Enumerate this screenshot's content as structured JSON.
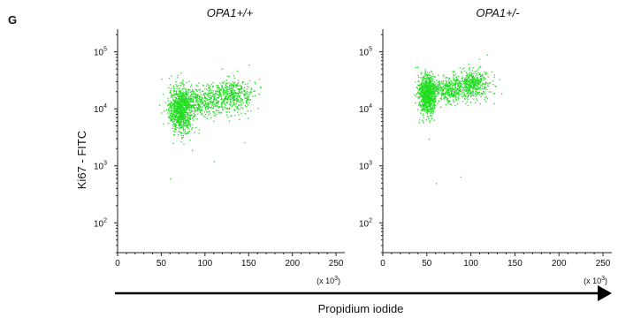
{
  "figure": {
    "panel_letter": "G",
    "y_axis_label": "Ki67 - FITC",
    "x_axis_label": "Propidium iodide",
    "x_multiplier": "(x 10",
    "x_multiplier_exp": "3",
    "x_multiplier_close": ")"
  },
  "colors": {
    "points": "#22dd22",
    "axis": "#222222",
    "arrow": "#000000"
  },
  "chart_data": [
    {
      "type": "scatter",
      "title": "OPA1+/+",
      "xlabel": "Propidium iodide",
      "ylabel": "Ki67 - FITC",
      "x_scale": "linear",
      "y_scale": "log",
      "xlim": [
        0,
        260
      ],
      "ylim": [
        30,
        250000
      ],
      "x_ticks": [
        "0",
        "50",
        "100",
        "150",
        "200",
        "250"
      ],
      "x_tick_values": [
        0,
        50,
        100,
        150,
        200,
        250
      ],
      "y_tick_values": [
        100,
        1000,
        10000,
        100000
      ],
      "y_tick_base": "10",
      "y_tick_exps": [
        "2",
        "3",
        "4",
        "5"
      ],
      "point_color": "#22dd22",
      "clusters": [
        {
          "n": 950,
          "x_mean": 72,
          "x_sd": 7,
          "log10y_mean": 4.0,
          "log10y_sd": 0.2
        },
        {
          "n": 380,
          "x_mean": 98,
          "x_sd": 14,
          "log10y_mean": 4.15,
          "log10y_sd": 0.13
        },
        {
          "n": 420,
          "x_mean": 132,
          "x_sd": 12,
          "log10y_mean": 4.25,
          "log10y_sd": 0.14
        }
      ],
      "outliers": [
        {
          "x": 60,
          "y": 600
        },
        {
          "x": 110,
          "y": 1200
        },
        {
          "x": 145,
          "y": 2600
        },
        {
          "x": 150,
          "y": 60000
        },
        {
          "x": 85,
          "y": 1900
        }
      ]
    },
    {
      "type": "scatter",
      "title": "OPA1+/-",
      "xlabel": "Propidium iodide",
      "ylabel": "Ki67 - FITC",
      "x_scale": "linear",
      "y_scale": "log",
      "xlim": [
        0,
        260
      ],
      "ylim": [
        30,
        250000
      ],
      "x_ticks": [
        "0",
        "50",
        "100",
        "150",
        "200",
        "250"
      ],
      "x_tick_values": [
        0,
        50,
        100,
        150,
        200,
        250
      ],
      "y_tick_values": [
        100,
        1000,
        10000,
        100000
      ],
      "y_tick_base": "10",
      "y_tick_exps": [
        "2",
        "3",
        "4",
        "5"
      ],
      "point_color": "#22dd22",
      "clusters": [
        {
          "n": 900,
          "x_mean": 50,
          "x_sd": 5,
          "log10y_mean": 4.25,
          "log10y_sd": 0.17
        },
        {
          "n": 350,
          "x_mean": 75,
          "x_sd": 10,
          "log10y_mean": 4.35,
          "log10y_sd": 0.12
        },
        {
          "n": 450,
          "x_mean": 102,
          "x_sd": 9,
          "log10y_mean": 4.45,
          "log10y_sd": 0.13
        }
      ],
      "outliers": [
        {
          "x": 60,
          "y": 500
        },
        {
          "x": 88,
          "y": 650
        },
        {
          "x": 118,
          "y": 90000
        },
        {
          "x": 52,
          "y": 3000
        }
      ]
    }
  ]
}
